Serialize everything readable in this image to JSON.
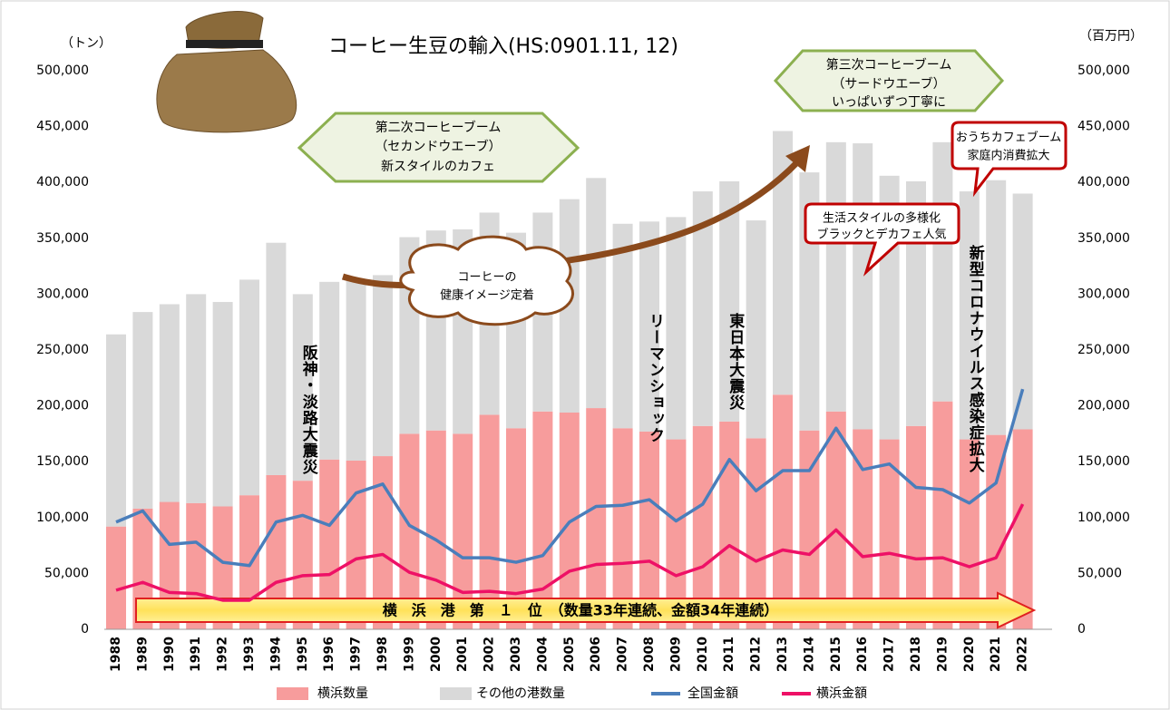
{
  "chart_data": {
    "type": "bar",
    "title": "コーヒー生豆の輸入(HS:0901.11, 12)",
    "y_label": "（トン）",
    "y2_label": "（百万円）",
    "categories": [
      "1988",
      "1989",
      "1990",
      "1991",
      "1992",
      "1993",
      "1994",
      "1995",
      "1996",
      "1997",
      "1998",
      "1999",
      "2000",
      "2001",
      "2002",
      "2003",
      "2004",
      "2005",
      "2006",
      "2007",
      "2008",
      "2009",
      "2010",
      "2011",
      "2012",
      "2013",
      "2014",
      "2015",
      "2016",
      "2017",
      "2018",
      "2019",
      "2020",
      "2021",
      "2022"
    ],
    "series": [
      {
        "name": "横浜数量",
        "type": "bar",
        "color": "#f79c9c",
        "values": [
          92000,
          108000,
          114000,
          113000,
          110000,
          120000,
          138000,
          133000,
          152000,
          151000,
          155000,
          175000,
          178000,
          175000,
          192000,
          180000,
          195000,
          194000,
          198000,
          180000,
          177000,
          170000,
          182000,
          186000,
          171000,
          210000,
          178000,
          195000,
          179000,
          170000,
          182000,
          204000,
          170000,
          174000,
          179000
        ]
      },
      {
        "name": "その他の港数量",
        "type": "bar",
        "color": "#d9d9d9",
        "values": [
          172000,
          176000,
          177000,
          187000,
          183000,
          193000,
          208000,
          167000,
          159000,
          161000,
          162000,
          176000,
          179000,
          183000,
          181000,
          175000,
          178000,
          191000,
          206000,
          183000,
          188000,
          199000,
          210000,
          215000,
          195000,
          236000,
          231000,
          241000,
          256000,
          236000,
          219000,
          232000,
          222000,
          228000,
          211000
        ]
      },
      {
        "name": "全国金額",
        "type": "line",
        "axis": "y2",
        "color": "#4a7ebb",
        "values": [
          96000,
          106000,
          76000,
          78000,
          60000,
          57000,
          96000,
          102000,
          93000,
          122000,
          130000,
          93000,
          80000,
          64000,
          64000,
          60000,
          66000,
          96000,
          110000,
          111000,
          116000,
          97000,
          112000,
          152000,
          124000,
          142000,
          142000,
          180000,
          143000,
          148000,
          127000,
          125000,
          113000,
          131000,
          215000
        ]
      },
      {
        "name": "横浜金額",
        "type": "line",
        "axis": "y2",
        "color": "#ee1166",
        "values": [
          35000,
          42000,
          33000,
          32000,
          26000,
          26000,
          42000,
          48000,
          49000,
          63000,
          67000,
          51000,
          44000,
          33000,
          34000,
          32000,
          36000,
          52000,
          58000,
          59000,
          61000,
          48000,
          56000,
          75000,
          61000,
          71000,
          67000,
          89000,
          65000,
          68000,
          63000,
          64000,
          56000,
          64000,
          112000
        ]
      }
    ],
    "ylim": [
      0,
      500000
    ],
    "yticks": [
      0,
      {
        "value": 50000,
        "label": "50,000"
      },
      {
        "value": 100000,
        "label": "100,000"
      },
      {
        "value": 150000,
        "label": "150,000"
      },
      {
        "value": 200000,
        "label": "200,000"
      },
      {
        "value": 250000,
        "label": "250,000"
      },
      {
        "value": 300000,
        "label": "300,000"
      },
      {
        "value": 350000,
        "label": "350,000"
      },
      {
        "value": 400000,
        "label": "400,000"
      },
      {
        "value": 450000,
        "label": "450,000"
      },
      {
        "value": 500000,
        "label": "500,000"
      }
    ],
    "y2lim": [
      0,
      500000
    ],
    "y2ticks": [
      0,
      {
        "value": 50000,
        "label": "50,000"
      },
      {
        "value": 100000,
        "label": "100,000"
      },
      {
        "value": 150000,
        "label": "150,000"
      },
      {
        "value": 200000,
        "label": "200,000"
      },
      {
        "value": 250000,
        "label": "250,000"
      },
      {
        "value": 300000,
        "label": "300,000"
      },
      {
        "value": 350000,
        "label": "350,000"
      },
      {
        "value": 400000,
        "label": "400,000"
      },
      {
        "value": 450000,
        "label": "450,000"
      },
      {
        "value": 500000,
        "label": "500,000"
      }
    ],
    "grid": false,
    "legend": "bottom",
    "annotations": {
      "second_boom": [
        "第二次コーヒーブーム",
        "（セカンドウエーブ）",
        "新スタイルのカフェ"
      ],
      "third_boom": [
        "第三次コーヒーブーム",
        "（サードウエーブ）",
        "いっぱいずつ丁寧に"
      ],
      "health": [
        "コーヒーの",
        "健康イメージ定着"
      ],
      "lifestyle": [
        "生活スタイルの多様化",
        "ブラックとデカフェ人気"
      ],
      "home_cafe": [
        "おうちカフェブーム",
        "家庭内消費拡大"
      ],
      "earthquake_1995": "阪神・淡路大震災",
      "lehman": "リーマンショック",
      "earthquake_2011": "東日本大震災",
      "covid": "新型コロナウイルス感染症拡大",
      "banner": "横　浜　港　第　１　位　（数量33年連続、金額34年連続）"
    }
  }
}
